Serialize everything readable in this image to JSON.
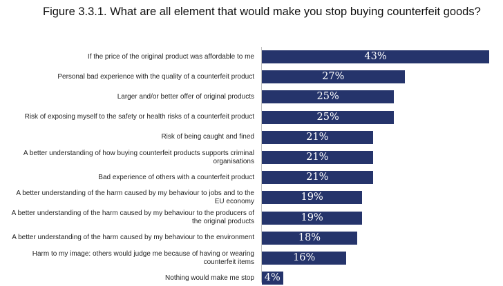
{
  "title": "Figure 3.3.1. What are all element that would make you stop buying counterfeit goods?",
  "colors": {
    "bar": "#25346b",
    "bar_text": "#ffffff"
  },
  "chart_data": {
    "type": "bar",
    "orientation": "horizontal",
    "title": "Figure 3.3.1. What are all element that would make you stop buying counterfeit goods?",
    "categories": [
      "If the price of the original product was affordable to me",
      "Personal bad experience with the quality of a counterfeit product",
      "Larger and/or better offer of original products",
      "Risk of exposing myself to the safety or health risks of a counterfeit product",
      "Risk of being caught and fined",
      "A better understanding of how buying counterfeit products supports criminal organisations",
      "Bad experience of others with a counterfeit product",
      "A better understanding of the harm caused by my behaviour to jobs and to the EU economy",
      "A better understanding of the harm caused by my behaviour to the producers of the original products",
      "A better understanding of the harm caused by my behaviour to the environment",
      "Harm to my image: others would judge me because of having or wearing counterfeit items",
      "Nothing would make me stop"
    ],
    "values": [
      43,
      27,
      25,
      25,
      21,
      21,
      21,
      19,
      19,
      18,
      16,
      4
    ],
    "value_labels": [
      "43%",
      "27%",
      "25%",
      "25%",
      "21%",
      "21%",
      "21%",
      "19%",
      "19%",
      "18%",
      "16%",
      "4%"
    ],
    "unit": "%",
    "xlim": [
      0,
      43
    ],
    "grid": false,
    "legend": "none"
  }
}
